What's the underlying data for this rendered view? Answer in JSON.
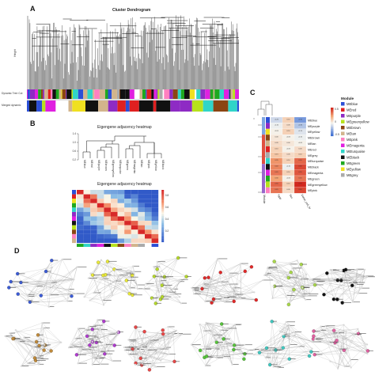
{
  "panel_labels": {
    "a": "A",
    "b": "B",
    "c": "C",
    "d": "D"
  },
  "panel_a": {
    "title": "Cluster Dendrogram",
    "ylabel": "Height",
    "row_labels": [
      "Dynamic Tree Cut",
      "Merged dynamic"
    ]
  },
  "panel_b": {
    "dendro_title": "Eigengene adjacency heatmap",
    "heat_title": "Eigengene adjacency heatmap",
    "y_ticks": [
      "0.2",
      "0.6",
      "1.0",
      "1.4"
    ],
    "leaf_labels": [
      "MEblue",
      "MEred",
      "MEpurple",
      "MEbrown",
      "MEgreenyellow",
      "MEturquoise",
      "MEgreen",
      "MEmagenta",
      "MEtan",
      "MEpink",
      "MEyellow",
      "MEblack"
    ],
    "colorbar_ticks": [
      "0.8",
      "0.6",
      "0.4",
      "0.2"
    ]
  },
  "panel_c": {
    "legend_title": "Module",
    "colorbar_ticks": [
      "0.5",
      "0",
      "-0.5"
    ],
    "modules": [
      {
        "name": "MEblue",
        "color": "#2c4fd6"
      },
      {
        "name": "MEred",
        "color": "#e02020"
      },
      {
        "name": "MEpurple",
        "color": "#8e2bc4"
      },
      {
        "name": "MEgreenyellow",
        "color": "#b7e21c"
      },
      {
        "name": "MEbrown",
        "color": "#8b4513"
      },
      {
        "name": "MEtan",
        "color": "#d2b48c"
      },
      {
        "name": "MEpink",
        "color": "#ff80c0"
      },
      {
        "name": "MEmagenta",
        "color": "#e020e0"
      },
      {
        "name": "MEturquoise",
        "color": "#30d5c8"
      },
      {
        "name": "MEblack",
        "color": "#111111"
      },
      {
        "name": "MEgreen",
        "color": "#1fa81f"
      },
      {
        "name": "MEyellow",
        "color": "#f0e020"
      },
      {
        "name": "MEgrey",
        "color": "#aaaaaa"
      }
    ],
    "row_labels": [
      "MEblue",
      "MEpurple",
      "MEyellow",
      "MEbrown",
      "MEtan",
      "MEred",
      "MEgrey",
      "MEturquoise",
      "MEblack",
      "MEmagenta",
      "MEgreen",
      "MEgreenyellow",
      "MEpink"
    ],
    "col_labels": [
      "Type",
      "Sex",
      "Donor_cell_Age"
    ]
  },
  "palette": {
    "networks": [
      "#3b5bd6",
      "#e8e838",
      "#b6d82c",
      "#e02828",
      "#a8d64a",
      "#111111",
      "#c08a3a",
      "#b03ad0",
      "#e84848",
      "#56c43a",
      "#40c8c0",
      "#e060a0"
    ],
    "module_bar": [
      "#2c4fd6",
      "#e02020",
      "#f0e020",
      "#1fa81f",
      "#30d5c8",
      "#8e2bc4",
      "#e020e0",
      "#111111",
      "#b7e21c",
      "#8b4513",
      "#ff80c0",
      "#d2b48c",
      "#aaaaaa",
      "#ffffff"
    ]
  }
}
